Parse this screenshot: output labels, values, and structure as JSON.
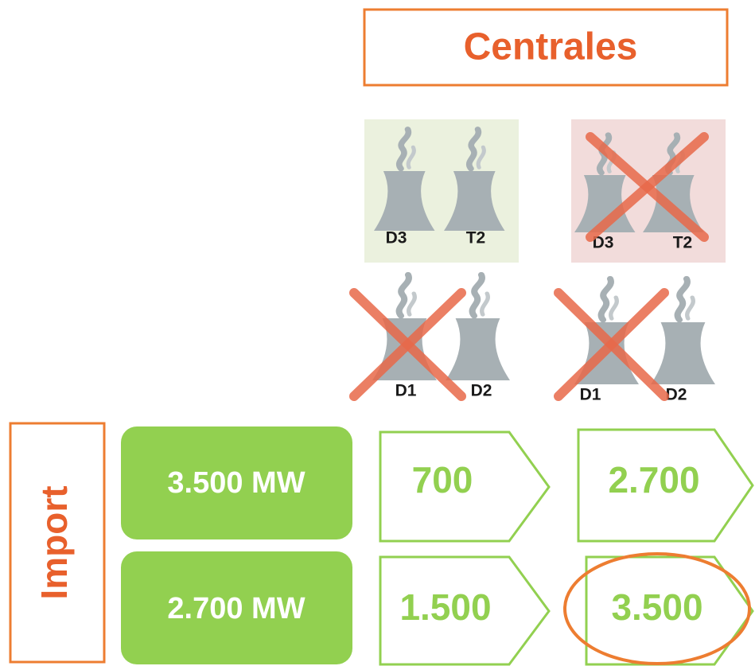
{
  "header": {
    "title": "Centrales"
  },
  "plants": [
    {
      "labels": [
        "D3",
        "T2"
      ]
    },
    {
      "labels": [
        "D3",
        "T2"
      ]
    },
    {
      "labels": [
        "D1",
        "D2"
      ]
    },
    {
      "labels": [
        "D1",
        "D2"
      ]
    }
  ],
  "import": {
    "label": "Import",
    "rows": [
      {
        "capacity": "3.500 MW",
        "values": [
          "700",
          "2.700"
        ]
      },
      {
        "capacity": "2.700 MW",
        "values": [
          "1.500",
          "3.500"
        ]
      }
    ]
  }
}
